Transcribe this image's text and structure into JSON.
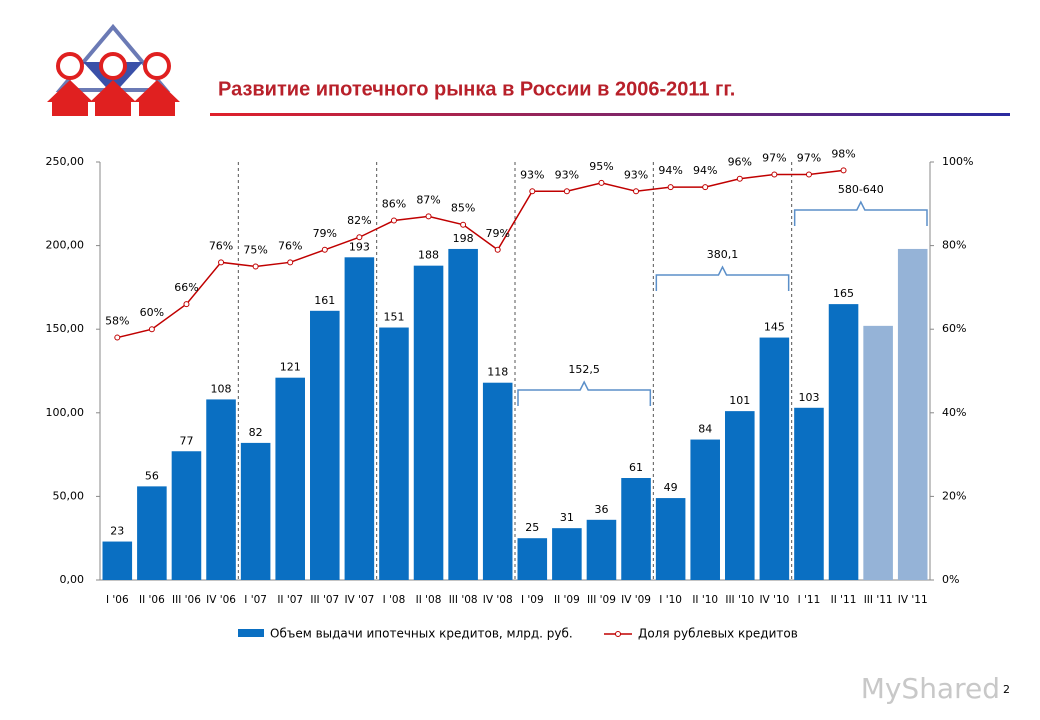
{
  "chart_data": {
    "type": "bar",
    "title": "Развитие  ипотечного рынка в России в 2006-2011 гг.",
    "categories": [
      "I '06",
      "II '06",
      "III '06",
      "IV '06",
      "I '07",
      "II '07",
      "III '07",
      "IV '07",
      "I '08",
      "II '08",
      "III '08",
      "IV '08",
      "I '09",
      "II '09",
      "III '09",
      "IV '09",
      "I '10",
      "II '10",
      "III '10",
      "IV '10",
      "I '11",
      "II '11",
      "III '11",
      "IV '11"
    ],
    "series": [
      {
        "name": "Объем выдачи ипотечных кредитов, млрд. руб.",
        "color": "#0a6fc2",
        "colors": [
          "#0a6fc2",
          "#0a6fc2",
          "#0a6fc2",
          "#0a6fc2",
          "#0a6fc2",
          "#0a6fc2",
          "#0a6fc2",
          "#0a6fc2",
          "#0a6fc2",
          "#0a6fc2",
          "#0a6fc2",
          "#0a6fc2",
          "#0a6fc2",
          "#0a6fc2",
          "#0a6fc2",
          "#0a6fc2",
          "#0a6fc2",
          "#0a6fc2",
          "#0a6fc2",
          "#0a6fc2",
          "#0a6fc2",
          "#0a6fc2",
          "#95b3d7",
          "#95b3d7"
        ],
        "values": [
          23,
          56,
          77,
          108,
          82,
          121,
          161,
          193,
          151,
          188,
          198,
          118,
          25,
          31,
          36,
          61,
          49,
          84,
          101,
          145,
          103,
          165,
          152,
          198
        ],
        "value_labels": [
          "23",
          "56",
          "77",
          "108",
          "82",
          "121",
          "161",
          "193",
          "151",
          "188",
          "198",
          "118",
          "25",
          "31",
          "36",
          "61",
          "49",
          "84",
          "101",
          "145",
          "103",
          "165",
          null,
          null
        ]
      },
      {
        "name": "Доля рублевых кредитов",
        "type": "line",
        "axis": "y2",
        "color": "#c00000",
        "values": [
          58,
          60,
          66,
          76,
          75,
          76,
          79,
          82,
          86,
          87,
          85,
          79,
          93,
          93,
          95,
          93,
          94,
          94,
          96,
          97,
          97,
          98,
          null,
          null
        ],
        "value_labels": [
          "58%",
          "60%",
          "66%",
          "76%",
          "75%",
          "76%",
          "79%",
          "82%",
          "86%",
          "87%",
          "85%",
          "79%",
          "93%",
          "93%",
          "95%",
          "93%",
          "94%",
          "94%",
          "96%",
          "97%",
          "97%",
          "98%",
          null,
          null
        ]
      }
    ],
    "ylim": [
      0,
      250
    ],
    "yticks": [
      {
        "value": 0,
        "label": "0,00"
      },
      {
        "value": 50,
        "label": "50,00"
      },
      {
        "value": 100,
        "label": "100,00"
      },
      {
        "value": 150,
        "label": "150,00"
      },
      {
        "value": 200,
        "label": "200,00"
      },
      {
        "value": 250,
        "label": "250,00"
      }
    ],
    "y2lim": [
      0,
      100
    ],
    "y2ticks": [
      {
        "value": 0,
        "label": "0%"
      },
      {
        "value": 20,
        "label": "20%"
      },
      {
        "value": 40,
        "label": "40%"
      },
      {
        "value": 60,
        "label": "60%"
      },
      {
        "value": 80,
        "label": "80%"
      },
      {
        "value": 100,
        "label": "100%"
      }
    ],
    "annotations": [
      "152,5",
      "380,1",
      "580-640"
    ]
  },
  "page_number": "2",
  "watermark": "MyShared"
}
